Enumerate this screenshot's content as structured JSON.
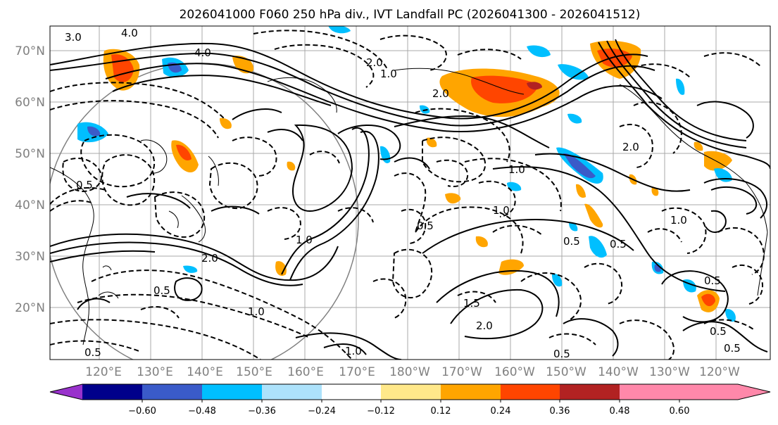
{
  "title": "2026041000 F060 250 hPa div., IVT Landfall PC (2026041300 - 2026041512)",
  "lat_labels": [
    "70°N",
    "60°N",
    "50°N",
    "40°N",
    "30°N",
    "20°N"
  ],
  "lon_labels": [
    "120°E",
    "130°E",
    "140°E",
    "150°E",
    "160°E",
    "170°E",
    "180°W",
    "170°W",
    "160°W",
    "150°W",
    "140°W",
    "130°W",
    "120°W"
  ],
  "colorbar": {
    "tick_labels": [
      "−0.60",
      "−0.48",
      "−0.36",
      "−0.24",
      "−0.12",
      "0.12",
      "0.24",
      "0.36",
      "0.48",
      "0.60"
    ],
    "colors": [
      "#9932cc",
      "#00008b",
      "#3a5bc9",
      "#00bfff",
      "#ade2fb",
      "#ffffff",
      "#ffe88a",
      "#ffa500",
      "#ff4500",
      "#b22222",
      "#ff88aa"
    ]
  },
  "contour_labels": [
    "3.0",
    "4.0",
    "4.0",
    "2.0",
    "1.0",
    "2.0",
    "0.5",
    "1.0",
    "1.0",
    "1.5",
    "2.0",
    "0.5",
    "0.5",
    "1.0",
    "0.5",
    "2.0",
    "1.0",
    "0.5",
    "0.5",
    "1.0",
    "0.5",
    "0.5",
    "0.5",
    "0.5",
    "1.0",
    "2.0"
  ],
  "colors": {
    "contour": "#000000",
    "graticule": "#a9a9a9",
    "circle": "#808080",
    "axis_label": "#808080"
  }
}
